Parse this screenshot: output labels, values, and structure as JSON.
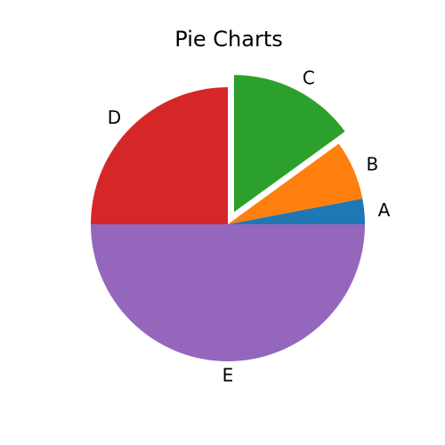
{
  "chart_data": {
    "type": "pie",
    "title": "Pie Charts",
    "slices": [
      {
        "label": "A",
        "value": 3,
        "color": "#1f77b4",
        "exploded": false
      },
      {
        "label": "B",
        "value": 7,
        "color": "#ff7f0e",
        "exploded": false
      },
      {
        "label": "C",
        "value": 15,
        "color": "#2ca02c",
        "exploded": true
      },
      {
        "label": "D",
        "value": 25,
        "color": "#d62728",
        "exploded": false
      },
      {
        "label": "E",
        "value": 50,
        "color": "#9467bd",
        "exploded": false
      }
    ],
    "start_angle_deg": 0,
    "direction": "counterclockwise",
    "explode_fraction": 0.1
  }
}
